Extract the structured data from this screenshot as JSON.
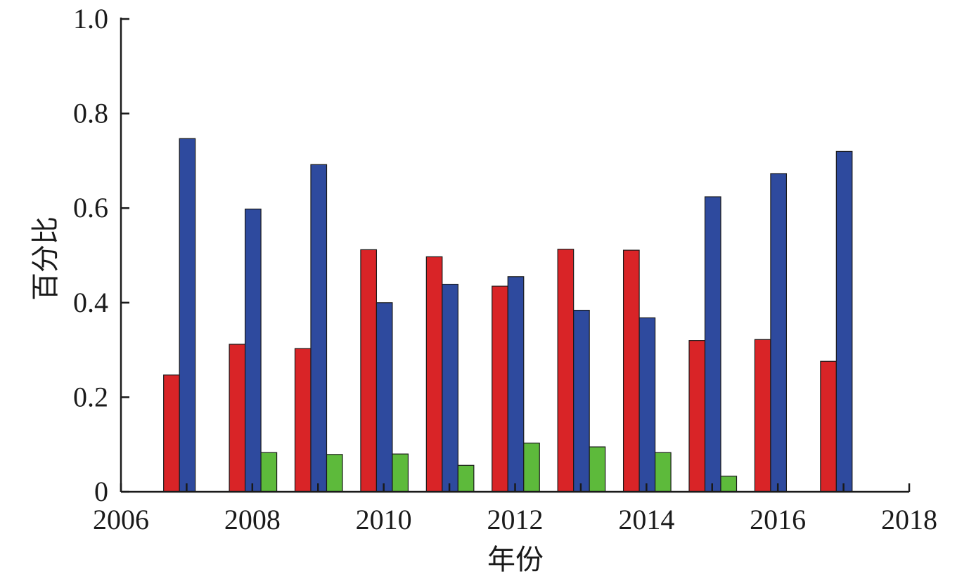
{
  "chart_data": {
    "type": "bar",
    "title": "",
    "xlabel": "年份",
    "ylabel": "百分比",
    "xlim": [
      2006,
      2018
    ],
    "ylim": [
      0,
      1.0
    ],
    "x_ticks": [
      "2006",
      "2008",
      "2010",
      "2012",
      "2014",
      "2016",
      "2018"
    ],
    "y_ticks": [
      "0",
      "0.2",
      "0.4",
      "0.6",
      "0.8",
      "1.0"
    ],
    "categories": [
      2007,
      2008,
      2009,
      2010,
      2011,
      2012,
      2013,
      2014,
      2015,
      2016,
      2017
    ],
    "series": [
      {
        "color": "#d92427",
        "values": [
          0.247,
          0.312,
          0.303,
          0.512,
          0.497,
          0.435,
          0.513,
          0.511,
          0.32,
          0.322,
          0.276
        ]
      },
      {
        "color": "#2e4a9e",
        "values": [
          0.747,
          0.598,
          0.692,
          0.4,
          0.439,
          0.455,
          0.384,
          0.368,
          0.624,
          0.673,
          0.72
        ]
      },
      {
        "color": "#5dba3b",
        "values": [
          0.0,
          0.083,
          0.079,
          0.08,
          0.056,
          0.103,
          0.095,
          0.083,
          0.033,
          0.0,
          0.0
        ]
      }
    ],
    "grid": false,
    "legend": "none"
  }
}
